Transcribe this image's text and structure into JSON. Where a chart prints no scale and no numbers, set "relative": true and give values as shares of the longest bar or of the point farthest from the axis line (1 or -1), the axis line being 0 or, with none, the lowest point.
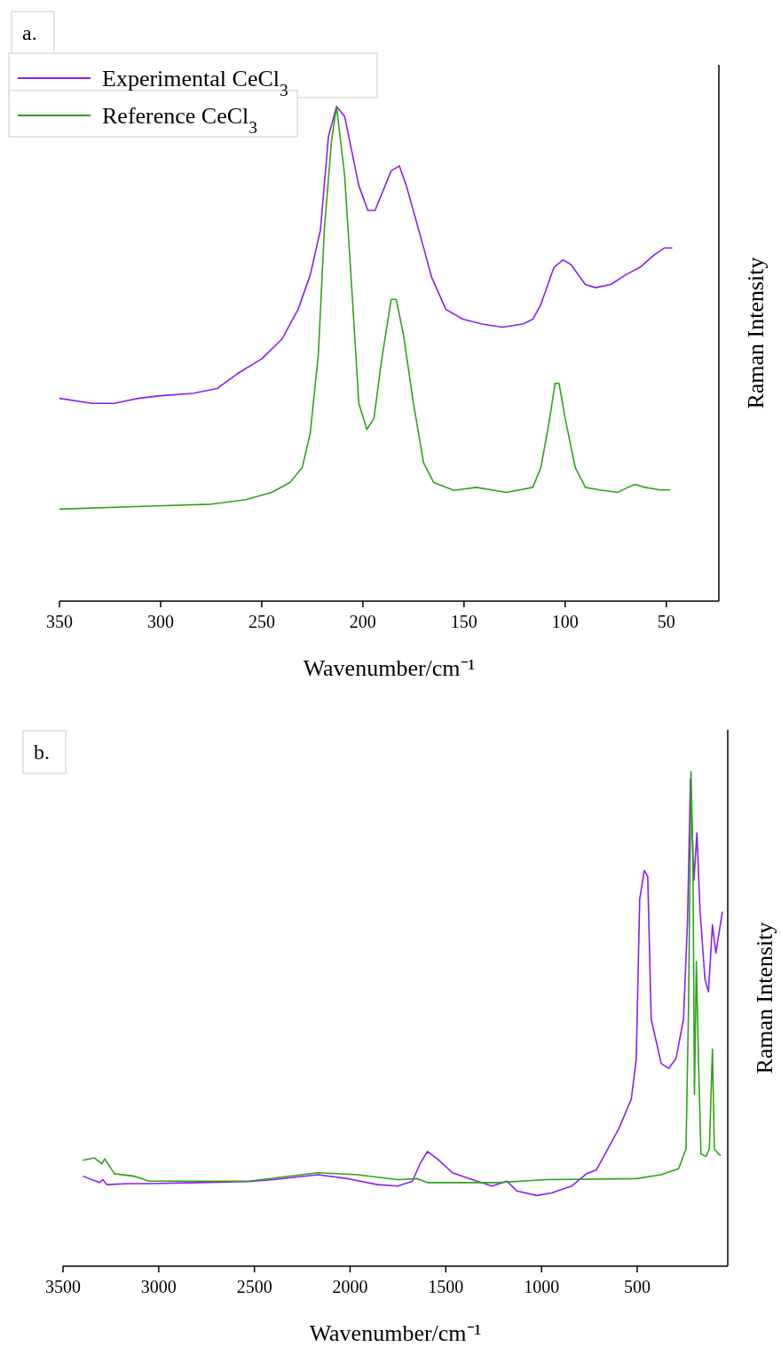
{
  "chart_data": [
    {
      "type": "line",
      "title": "a.",
      "xlabel": "Wavenumber/cm⁻¹",
      "ylabel": "Raman Intensity",
      "relative": true,
      "xlim": [
        350,
        24
      ],
      "xticks": [
        350,
        300,
        250,
        200,
        150,
        100,
        50
      ],
      "legend": "top left",
      "series": [
        {
          "name": "Experimental CeCl$_{3}$",
          "color": "#8a1ff0",
          "x": [
            350,
            334,
            323,
            311,
            301,
            284,
            272,
            262,
            250,
            240,
            232,
            226,
            221,
            217,
            213,
            209,
            202,
            197.5,
            194,
            186,
            182,
            178.5,
            171,
            166,
            159,
            150.5,
            141,
            131,
            121,
            116,
            112,
            105.5,
            101,
            97,
            90,
            85,
            77.5,
            70,
            63,
            56,
            51,
            47
          ],
          "values": [
            0.41,
            0.4,
            0.4,
            0.41,
            0.415,
            0.42,
            0.43,
            0.46,
            0.49,
            0.53,
            0.59,
            0.66,
            0.75,
            0.94,
            1.0,
            0.98,
            0.84,
            0.79,
            0.79,
            0.87,
            0.88,
            0.84,
            0.73,
            0.655,
            0.59,
            0.57,
            0.56,
            0.554,
            0.56,
            0.57,
            0.6,
            0.675,
            0.69,
            0.68,
            0.64,
            0.634,
            0.64,
            0.66,
            0.675,
            0.7,
            0.714,
            0.714
          ]
        },
        {
          "name": "Reference CeCl$_{3}$",
          "color": "#2ea31a",
          "x": [
            350,
            306,
            275,
            258,
            245,
            236,
            230,
            226,
            222,
            219,
            215.5,
            213,
            209,
            205,
            202,
            198,
            194.5,
            191,
            186,
            183.5,
            180,
            175,
            170,
            165,
            155,
            144,
            129,
            116,
            112,
            108,
            105,
            103,
            100,
            95,
            90,
            83,
            74,
            69,
            65.5,
            60.5,
            53,
            48
          ],
          "values": [
            0.186,
            0.192,
            0.196,
            0.205,
            0.22,
            0.24,
            0.27,
            0.34,
            0.5,
            0.755,
            0.93,
            1.0,
            0.86,
            0.6,
            0.4,
            0.347,
            0.37,
            0.48,
            0.61,
            0.61,
            0.54,
            0.4,
            0.28,
            0.24,
            0.224,
            0.23,
            0.22,
            0.23,
            0.27,
            0.36,
            0.44,
            0.44,
            0.37,
            0.27,
            0.23,
            0.225,
            0.22,
            0.23,
            0.236,
            0.23,
            0.225,
            0.225
          ]
        }
      ]
    },
    {
      "type": "line",
      "title": "b.",
      "xlabel": "Wavenumber/cm⁻¹",
      "ylabel": "Raman Intensity",
      "relative": true,
      "xlim": [
        3500,
        27
      ],
      "xticks": [
        3500,
        3000,
        2500,
        2000,
        1500,
        1000,
        500
      ],
      "series": [
        {
          "color": "#8a1ff0",
          "x": [
            3396,
            3310,
            3292,
            3271,
            3155,
            3050,
            2791,
            2531,
            2401,
            2168,
            2012,
            1856,
            1752,
            1674,
            1635,
            1596,
            1544,
            1466,
            1362,
            1258,
            1180,
            1129,
            1025,
            947,
            843,
            765,
            713,
            661,
            596,
            531,
            505,
            487,
            463,
            445,
            427,
            375,
            336,
            297,
            258,
            237,
            222,
            204,
            188,
            172,
            146,
            128,
            107,
            89,
            55
          ],
          "values": [
            0.182,
            0.169,
            0.175,
            0.165,
            0.167,
            0.167,
            0.169,
            0.171,
            0.175,
            0.185,
            0.177,
            0.165,
            0.162,
            0.172,
            0.207,
            0.232,
            0.217,
            0.189,
            0.175,
            0.162,
            0.172,
            0.152,
            0.143,
            0.148,
            0.162,
            0.187,
            0.195,
            0.232,
            0.278,
            0.338,
            0.419,
            0.742,
            0.8,
            0.788,
            0.5,
            0.41,
            0.4,
            0.42,
            0.5,
            0.7,
            0.985,
            0.78,
            0.876,
            0.72,
            0.58,
            0.555,
            0.69,
            0.633,
            0.717
          ]
        },
        {
          "color": "#2ea31a",
          "x": [
            3396,
            3336,
            3297,
            3282,
            3232,
            3129,
            3050,
            2531,
            2168,
            1960,
            1752,
            1648,
            1596,
            1233,
            973,
            505,
            375,
            284,
            245,
            232,
            219,
            209,
            201,
            191,
            180,
            167,
            141,
            123,
            107,
            97,
            76,
            63
          ],
          "values": [
            0.214,
            0.219,
            0.207,
            0.217,
            0.187,
            0.182,
            0.172,
            0.172,
            0.189,
            0.185,
            0.175,
            0.177,
            0.169,
            0.169,
            0.175,
            0.177,
            0.185,
            0.197,
            0.237,
            0.52,
            1.0,
            0.823,
            0.348,
            0.616,
            0.419,
            0.227,
            0.222,
            0.237,
            0.439,
            0.237,
            0.227,
            0.224
          ]
        }
      ]
    }
  ]
}
